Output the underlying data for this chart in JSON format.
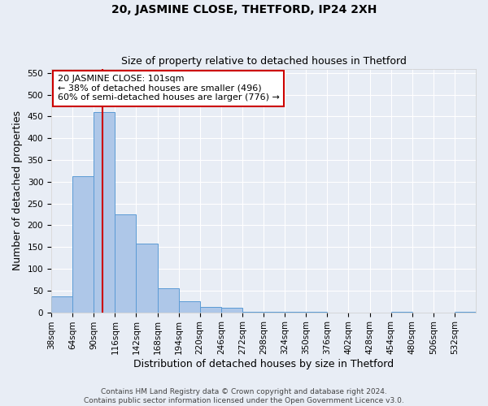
{
  "title": "20, JASMINE CLOSE, THETFORD, IP24 2XH",
  "subtitle": "Size of property relative to detached houses in Thetford",
  "xlabel": "Distribution of detached houses by size in Thetford",
  "ylabel": "Number of detached properties",
  "bin_edges": [
    38,
    64,
    90,
    116,
    142,
    168,
    194,
    220,
    246,
    272,
    298,
    324,
    350,
    376,
    402,
    428,
    454,
    480,
    506,
    532,
    558
  ],
  "bar_heights": [
    37,
    312,
    460,
    225,
    157,
    55,
    25,
    12,
    10,
    2,
    2,
    1,
    1,
    0,
    0,
    0,
    1,
    0,
    0,
    1
  ],
  "bar_color": "#aec7e8",
  "bar_edge_color": "#5b9bd5",
  "property_size": 101,
  "property_line_color": "#cc0000",
  "annotation_line1": "20 JASMINE CLOSE: 101sqm",
  "annotation_line2": "← 38% of detached houses are smaller (496)",
  "annotation_line3": "60% of semi-detached houses are larger (776) →",
  "annotation_box_color": "#ffffff",
  "annotation_box_edge_color": "#cc0000",
  "ylim": [
    0,
    560
  ],
  "yticks": [
    0,
    50,
    100,
    150,
    200,
    250,
    300,
    350,
    400,
    450,
    500,
    550
  ],
  "background_color": "#e8edf5",
  "grid_color": "#ffffff",
  "footer_line1": "Contains HM Land Registry data © Crown copyright and database right 2024.",
  "footer_line2": "Contains public sector information licensed under the Open Government Licence v3.0.",
  "title_fontsize": 10,
  "subtitle_fontsize": 9,
  "axis_label_fontsize": 9,
  "tick_fontsize": 7.5,
  "annotation_fontsize": 8,
  "footer_fontsize": 6.5
}
